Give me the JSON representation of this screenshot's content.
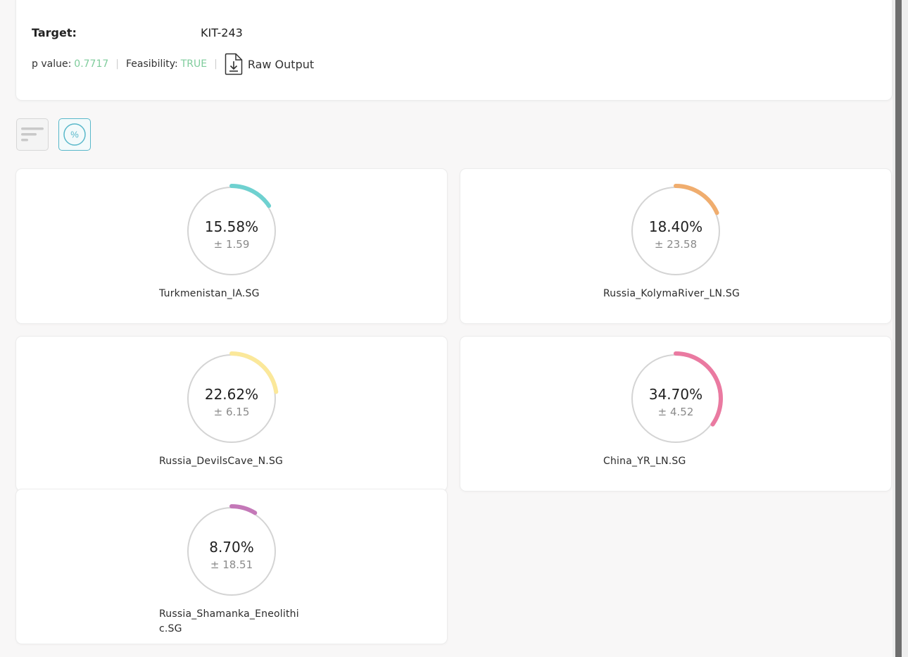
{
  "header": {
    "target_label": "Target:",
    "target_value": "KIT-243",
    "p_value_label": "p value:",
    "p_value": "0.7717",
    "feasibility_label": "Feasibility:",
    "feasibility": "TRUE",
    "raw_output_label": "Raw Output",
    "accent_color": "#7fcc9c"
  },
  "toolbar": {
    "list_view_icon": "bars-sort-icon",
    "percent_view_icon": "percent-circle-icon",
    "percent_symbol": "%"
  },
  "populations": [
    {
      "name": "Turkmenistan_IA.SG",
      "percent": "15.58%",
      "error": "± 1.59",
      "fraction": 0.1558,
      "color": "#6fd1d0"
    },
    {
      "name": "Russia_KolymaRiver_LN.SG",
      "percent": "18.40%",
      "error": "± 23.58",
      "fraction": 0.184,
      "color": "#f0ad6e"
    },
    {
      "name": "Russia_DevilsCave_N.SG",
      "percent": "22.62%",
      "error": "± 6.15",
      "fraction": 0.2262,
      "color": "#fbe89a"
    },
    {
      "name": "China_YR_LN.SG",
      "percent": "34.70%",
      "error": "± 4.52",
      "fraction": 0.347,
      "color": "#ea7aa1"
    },
    {
      "name": "Russia_Shamanka_Eneolithic.SG",
      "percent": "8.70%",
      "error": "± 18.51",
      "fraction": 0.087,
      "color": "#c478b8"
    }
  ]
}
